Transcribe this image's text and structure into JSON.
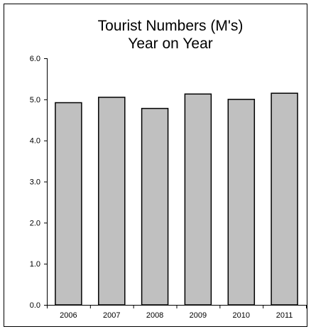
{
  "chart_data": {
    "type": "bar",
    "title": [
      "Tourist Numbers (M's)",
      "Year on Year"
    ],
    "xlabel": "",
    "ylabel": "",
    "categories": [
      "2006",
      "2007",
      "2008",
      "2009",
      "2010",
      "2011"
    ],
    "values": [
      4.92,
      5.05,
      4.78,
      5.13,
      5.0,
      5.15
    ],
    "ylim": [
      0,
      6
    ],
    "yticks": [
      "0.0",
      "1.0",
      "2.0",
      "3.0",
      "4.0",
      "5.0",
      "6.0"
    ],
    "grid": false,
    "legend": "none",
    "bar_color": "#c0c0c0",
    "bar_edge_color": "#000000"
  }
}
